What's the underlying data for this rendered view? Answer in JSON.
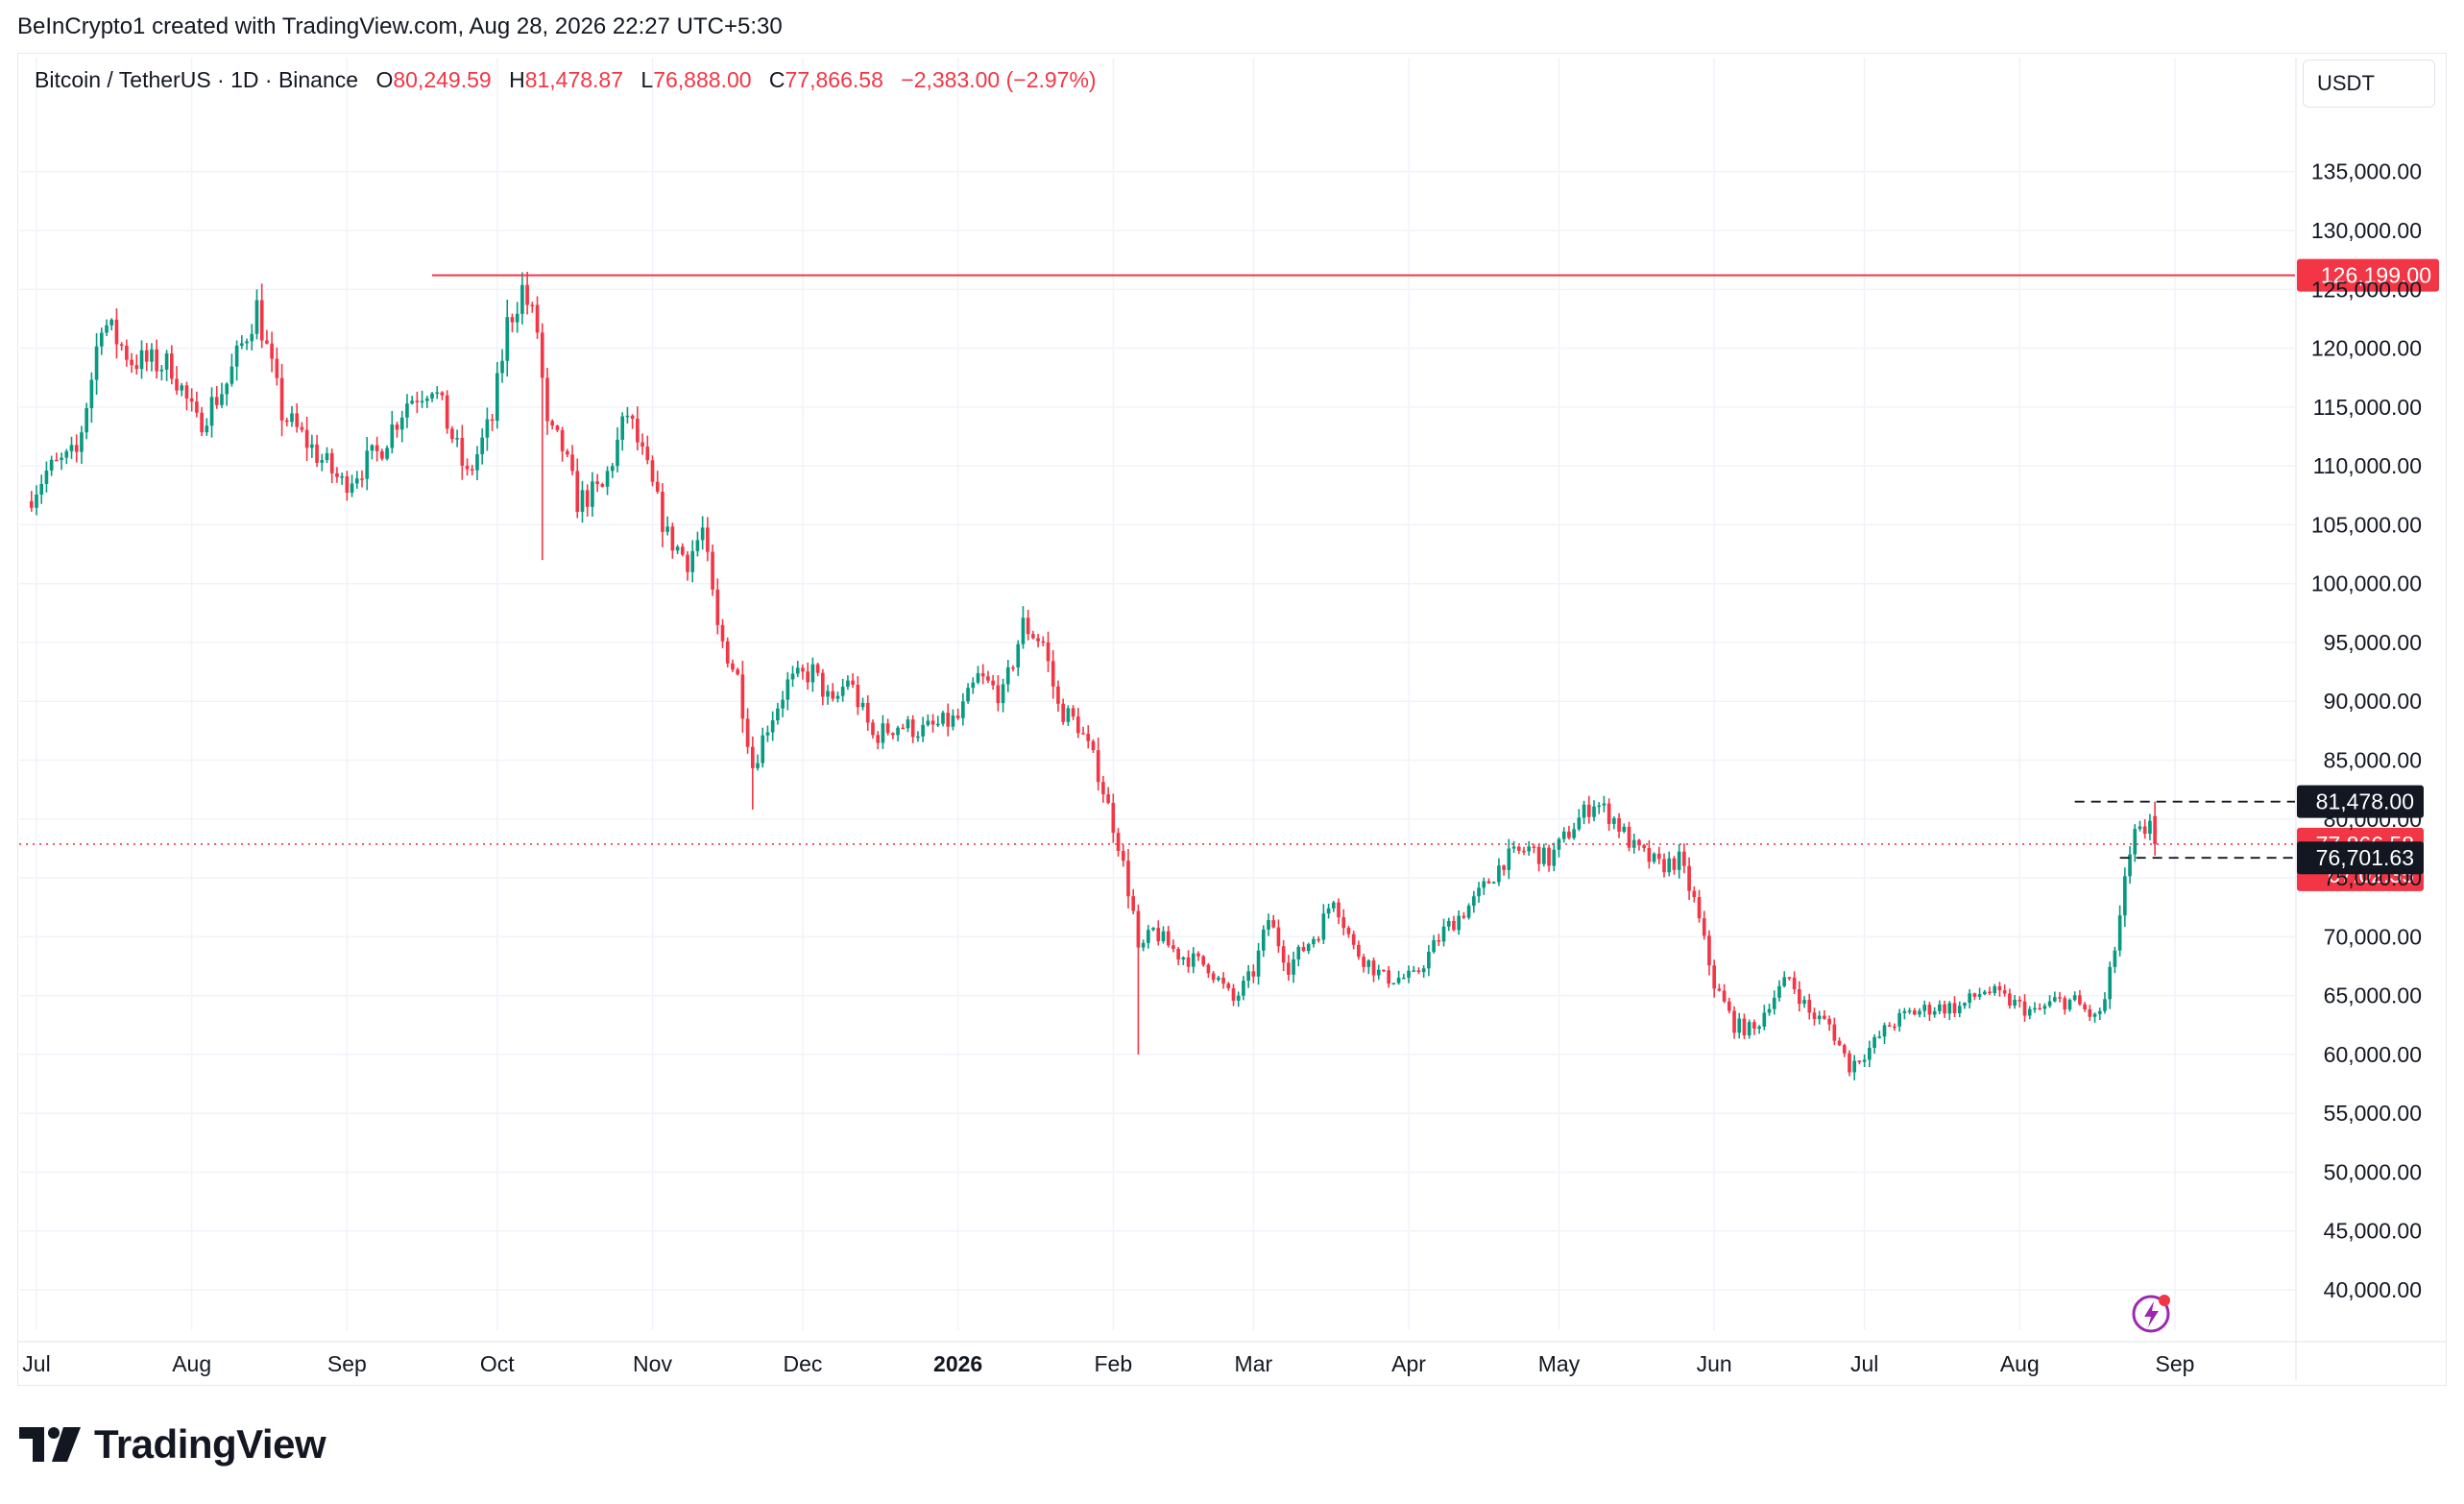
{
  "header": {
    "credit": "BeInCrypto1 created with TradingView.com, Aug 28, 2026 22:27 UTC+5:30"
  },
  "legend": {
    "symbol": "Bitcoin / TetherUS · 1D · Binance",
    "open_label": "O",
    "open": "80,249.59",
    "high_label": "H",
    "high": "81,478.87",
    "low_label": "L",
    "low": "76,888.00",
    "close_label": "C",
    "close": "77,866.58",
    "change": "−2,383.00 (−2.97%)"
  },
  "currency": "USDT",
  "brand": {
    "name": "TradingView",
    "logo_icon": "tradingview-logo-icon"
  },
  "alert_icon": "lightning-alert-icon",
  "colors": {
    "up": "#089981",
    "down": "#f23645",
    "ath_line": "#f23645",
    "label_dark": "#131722",
    "grid": "#f0f3fa"
  },
  "chart_data": {
    "type": "candlestick",
    "ylim": [
      37000,
      143000
    ],
    "y_ticks": [
      {
        "value": 135000,
        "label": "135,000.00"
      },
      {
        "value": 130000,
        "label": "130,000.00"
      },
      {
        "value": 125000,
        "label": "125,000.00"
      },
      {
        "value": 120000,
        "label": "120,000.00"
      },
      {
        "value": 115000,
        "label": "115,000.00"
      },
      {
        "value": 110000,
        "label": "110,000.00"
      },
      {
        "value": 105000,
        "label": "105,000.00"
      },
      {
        "value": 100000,
        "label": "100,000.00"
      },
      {
        "value": 95000,
        "label": "95,000.00"
      },
      {
        "value": 90000,
        "label": "90,000.00"
      },
      {
        "value": 85000,
        "label": "85,000.00"
      },
      {
        "value": 80000,
        "label": "80,000.00"
      },
      {
        "value": 75000,
        "label": "75,000.00"
      },
      {
        "value": 70000,
        "label": "70,000.00"
      },
      {
        "value": 65000,
        "label": "65,000.00"
      },
      {
        "value": 60000,
        "label": "60,000.00"
      },
      {
        "value": 55000,
        "label": "55,000.00"
      },
      {
        "value": 50000,
        "label": "50,000.00"
      },
      {
        "value": 45000,
        "label": "45,000.00"
      },
      {
        "value": 40000,
        "label": "40,000.00"
      }
    ],
    "x_start": "2025-07-01",
    "x_end": "2026-09-30",
    "x_ticks": [
      {
        "date": "2025-07-01",
        "label": "Jul",
        "bold": false
      },
      {
        "date": "2025-08-01",
        "label": "Aug",
        "bold": false
      },
      {
        "date": "2025-09-01",
        "label": "Sep",
        "bold": false
      },
      {
        "date": "2025-10-01",
        "label": "Oct",
        "bold": false
      },
      {
        "date": "2025-11-01",
        "label": "Nov",
        "bold": false
      },
      {
        "date": "2025-12-01",
        "label": "Dec",
        "bold": false
      },
      {
        "date": "2026-01-01",
        "label": "2026",
        "bold": true
      },
      {
        "date": "2026-02-01",
        "label": "Feb",
        "bold": false
      },
      {
        "date": "2026-03-01",
        "label": "Mar",
        "bold": false
      },
      {
        "date": "2026-04-01",
        "label": "Apr",
        "bold": false
      },
      {
        "date": "2026-05-01",
        "label": "May",
        "bold": false
      },
      {
        "date": "2026-06-01",
        "label": "Jun",
        "bold": false
      },
      {
        "date": "2026-07-01",
        "label": "Jul",
        "bold": false
      },
      {
        "date": "2026-08-01",
        "label": "Aug",
        "bold": false
      },
      {
        "date": "2026-09-01",
        "label": "Sep",
        "bold": false
      }
    ],
    "close_series": [
      [
        "2025-06-29",
        107000
      ],
      [
        "2025-07-03",
        109500
      ],
      [
        "2025-07-09",
        111000
      ],
      [
        "2025-07-12",
        117500
      ],
      [
        "2025-07-14",
        122500
      ],
      [
        "2025-07-20",
        119000
      ],
      [
        "2025-07-28",
        118500
      ],
      [
        "2025-08-02",
        113500
      ],
      [
        "2025-08-08",
        117000
      ],
      [
        "2025-08-14",
        123500
      ],
      [
        "2025-08-19",
        114500
      ],
      [
        "2025-08-25",
        111500
      ],
      [
        "2025-08-31",
        108500
      ],
      [
        "2025-09-07",
        111000
      ],
      [
        "2025-09-13",
        115500
      ],
      [
        "2025-09-18",
        117000
      ],
      [
        "2025-09-22",
        112500
      ],
      [
        "2025-09-25",
        109000
      ],
      [
        "2025-09-30",
        114000
      ],
      [
        "2025-10-03",
        122000
      ],
      [
        "2025-10-06",
        125000
      ],
      [
        "2025-10-09",
        121500
      ],
      [
        "2025-10-11",
        113000
      ],
      [
        "2025-10-14",
        111500
      ],
      [
        "2025-10-17",
        107000
      ],
      [
        "2025-10-22",
        108000
      ],
      [
        "2025-10-27",
        114500
      ],
      [
        "2025-10-31",
        109500
      ],
      [
        "2025-11-04",
        104000
      ],
      [
        "2025-11-08",
        102000
      ],
      [
        "2025-11-11",
        104500
      ],
      [
        "2025-11-14",
        96000
      ],
      [
        "2025-11-18",
        92000
      ],
      [
        "2025-11-21",
        84500
      ],
      [
        "2025-11-24",
        88000
      ],
      [
        "2025-11-28",
        91500
      ],
      [
        "2025-12-03",
        92500
      ],
      [
        "2025-12-07",
        89500
      ],
      [
        "2025-12-10",
        92000
      ],
      [
        "2025-12-15",
        87000
      ],
      [
        "2025-12-20",
        88000
      ],
      [
        "2025-12-25",
        87500
      ],
      [
        "2026-01-01",
        88500
      ],
      [
        "2026-01-05",
        92000
      ],
      [
        "2026-01-10",
        90500
      ],
      [
        "2026-01-14",
        96500
      ],
      [
        "2026-01-18",
        95000
      ],
      [
        "2026-01-21",
        89500
      ],
      [
        "2026-01-25",
        88000
      ],
      [
        "2026-01-29",
        84000
      ],
      [
        "2026-02-02",
        78000
      ],
      [
        "2026-02-05",
        72000
      ],
      [
        "2026-02-06",
        68500
      ],
      [
        "2026-02-09",
        70500
      ],
      [
        "2026-02-14",
        68500
      ],
      [
        "2026-02-20",
        67500
      ],
      [
        "2026-02-25",
        64500
      ],
      [
        "2026-03-01",
        67000
      ],
      [
        "2026-03-04",
        71500
      ],
      [
        "2026-03-08",
        67500
      ],
      [
        "2026-03-14",
        70500
      ],
      [
        "2026-03-17",
        73500
      ],
      [
        "2026-03-21",
        69000
      ],
      [
        "2026-03-27",
        66500
      ],
      [
        "2026-04-02",
        66500
      ],
      [
        "2026-04-08",
        70500
      ],
      [
        "2026-04-14",
        73000
      ],
      [
        "2026-04-20",
        76500
      ],
      [
        "2026-04-25",
        77500
      ],
      [
        "2026-04-29",
        76500
      ],
      [
        "2026-05-04",
        79500
      ],
      [
        "2026-05-08",
        81500
      ],
      [
        "2026-05-12",
        80000
      ],
      [
        "2026-05-16",
        77500
      ],
      [
        "2026-05-21",
        76000
      ],
      [
        "2026-05-25",
        76500
      ],
      [
        "2026-05-28",
        73000
      ],
      [
        "2026-06-01",
        66000
      ],
      [
        "2026-06-05",
        62500
      ],
      [
        "2026-06-09",
        62000
      ],
      [
        "2026-06-12",
        64500
      ],
      [
        "2026-06-16",
        66500
      ],
      [
        "2026-06-20",
        63500
      ],
      [
        "2026-06-24",
        62500
      ],
      [
        "2026-06-28",
        59000
      ],
      [
        "2026-07-02",
        60500
      ],
      [
        "2026-07-06",
        62500
      ],
      [
        "2026-07-10",
        63500
      ],
      [
        "2026-07-15",
        64000
      ],
      [
        "2026-07-20",
        64000
      ],
      [
        "2026-07-25",
        65500
      ],
      [
        "2026-07-30",
        64500
      ],
      [
        "2026-08-04",
        63500
      ],
      [
        "2026-08-08",
        64500
      ],
      [
        "2026-08-12",
        64500
      ],
      [
        "2026-08-16",
        63000
      ],
      [
        "2026-08-18",
        64500
      ],
      [
        "2026-08-20",
        69000
      ],
      [
        "2026-08-22",
        74500
      ],
      [
        "2026-08-24",
        78500
      ],
      [
        "2026-08-26",
        79000
      ],
      [
        "2026-08-27",
        80249.59
      ],
      [
        "2026-08-28",
        77866.58
      ]
    ],
    "big_wicks": [
      {
        "date": "2025-10-10",
        "low": 102000
      },
      {
        "date": "2025-11-21",
        "low": 80800
      },
      {
        "date": "2026-02-06",
        "low": 60000
      },
      {
        "date": "2026-06-29",
        "low": 57800
      }
    ],
    "all_time_high": {
      "value": 126199,
      "label": "126,199.00",
      "from": "2025-09-18"
    },
    "last_candle": {
      "date": "2026-08-28",
      "open": 80249.59,
      "high": 81478.87,
      "low": 76888.0,
      "close": 77866.58
    },
    "price_labels": [
      {
        "value": 81478,
        "label": "81,478.00",
        "style": "dark",
        "line_from": "2026-08-12"
      },
      {
        "value": 77866.58,
        "label": "77,866.58",
        "countdown": "07:02:35",
        "style": "red"
      },
      {
        "value": 76701.63,
        "label": "76,701.63",
        "style": "dark",
        "line_from": "2026-08-21"
      }
    ]
  }
}
